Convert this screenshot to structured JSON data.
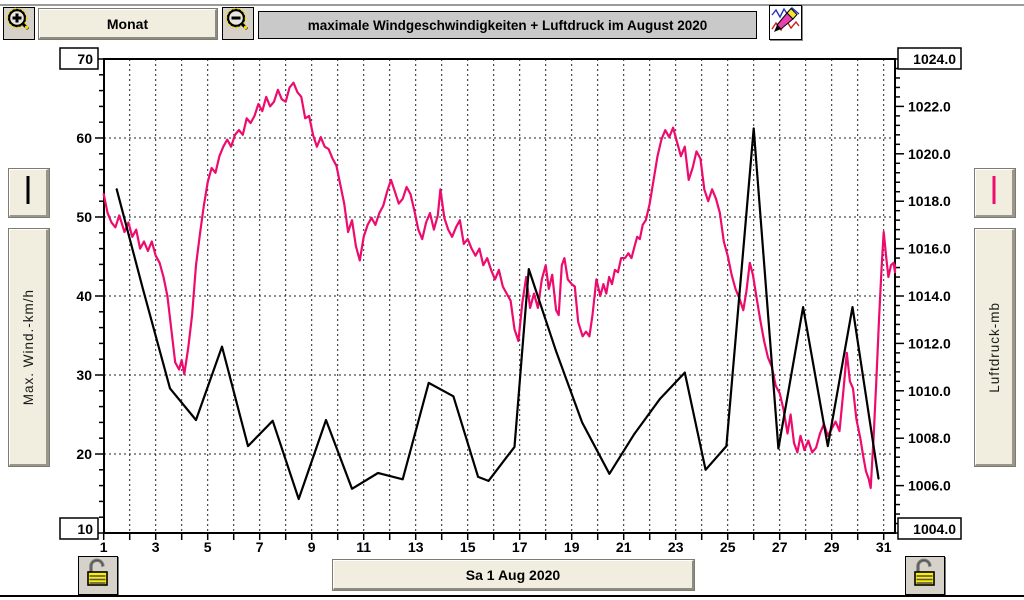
{
  "toolbar": {
    "zoom_in_icon": "magnifier-plus",
    "zoom_out_icon": "magnifier-minus",
    "monat_label": "Monat",
    "title": "maximale Windgeschwindigkeiten + Luftdruck im August 2020",
    "edit_icon": "pencil-eraser-over-curves"
  },
  "left_panel": {
    "legend_color": "#000000",
    "axis_label": "Max. Wind.-km/h"
  },
  "right_panel": {
    "legend_color": "#ee0b6e",
    "axis_label": "Luftdruck-mb"
  },
  "bottom_bar": {
    "left_lock_icon": "open-padlock",
    "date_label": "Sa 1 Aug 2020",
    "right_lock_icon": "open-padlock"
  },
  "chart_data": {
    "type": "line",
    "title": "maximale Windgeschwindigkeiten + Luftdruck im August 2020",
    "grid": "dashed",
    "x_axis": {
      "min": 1,
      "max": 31.5,
      "tick_step": 1,
      "labels": [
        "1",
        "3",
        "5",
        "7",
        "9",
        "11",
        "13",
        "15",
        "17",
        "19",
        "21",
        "23",
        "25",
        "27",
        "29",
        "31"
      ],
      "label_days": [
        1,
        3,
        5,
        7,
        9,
        11,
        13,
        15,
        17,
        19,
        21,
        23,
        25,
        27,
        29,
        31
      ]
    },
    "left_axis": {
      "title": "Max. Wind.-km/h",
      "min": 10,
      "max": 70,
      "major_step": 10,
      "minor_step": 2,
      "top_box": "70",
      "bottom_box": "10",
      "inner_labels": [
        "60",
        "50",
        "40",
        "30",
        "20"
      ],
      "inner_values": [
        60,
        50,
        40,
        30,
        20
      ]
    },
    "right_axis": {
      "title": "Luftdruck-mb",
      "min": 1004,
      "max": 1024,
      "major_step": 2,
      "minor_step": 0.4,
      "top_box": "1024.0",
      "bottom_box": "1004.0",
      "inner_labels": [
        "1022.0",
        "1020.0",
        "1018.0",
        "1016.0",
        "1014.0",
        "1012.0",
        "1010.0",
        "1008.0",
        "1006.0"
      ],
      "inner_values": [
        1022,
        1020,
        1018,
        1016,
        1014,
        1012,
        1010,
        1008,
        1006
      ]
    },
    "series": [
      {
        "name": "Max. Wind-km/h",
        "axis": "left",
        "color": "#000000",
        "points": [
          [
            1.5,
            53.5
          ],
          [
            2.5,
            41.0
          ],
          [
            3.55,
            28.3
          ],
          [
            4.55,
            24.3
          ],
          [
            5.55,
            33.6
          ],
          [
            6.55,
            21.0
          ],
          [
            7.5,
            24.2
          ],
          [
            8.5,
            14.3
          ],
          [
            9.55,
            24.3
          ],
          [
            10.55,
            15.6
          ],
          [
            11.55,
            17.6
          ],
          [
            12.5,
            16.8
          ],
          [
            13.5,
            29.0
          ],
          [
            14.45,
            27.3
          ],
          [
            15.4,
            17.1
          ],
          [
            15.8,
            16.6
          ],
          [
            16.8,
            20.9
          ],
          [
            17.35,
            43.4
          ],
          [
            18.4,
            33.0
          ],
          [
            19.4,
            24.0
          ],
          [
            20.45,
            17.5
          ],
          [
            21.4,
            22.5
          ],
          [
            22.4,
            27.0
          ],
          [
            23.35,
            30.3
          ],
          [
            24.15,
            18.0
          ],
          [
            24.95,
            21.0
          ],
          [
            26.0,
            61.2
          ],
          [
            26.95,
            20.7
          ],
          [
            27.9,
            38.6
          ],
          [
            28.85,
            21.0
          ],
          [
            29.8,
            38.6
          ],
          [
            30.8,
            16.9
          ]
        ]
      },
      {
        "name": "Luftdruck-mb",
        "axis": "right",
        "color": "#ee0b6e",
        "points": [
          [
            1.0,
            1018.3
          ],
          [
            1.15,
            1017.5
          ],
          [
            1.3,
            1017.1
          ],
          [
            1.45,
            1016.9
          ],
          [
            1.6,
            1017.4
          ],
          [
            1.8,
            1016.7
          ],
          [
            1.95,
            1017.1
          ],
          [
            2.1,
            1016.5
          ],
          [
            2.25,
            1016.8
          ],
          [
            2.4,
            1016.0
          ],
          [
            2.55,
            1016.3
          ],
          [
            2.7,
            1015.9
          ],
          [
            2.85,
            1016.3
          ],
          [
            3.0,
            1015.7
          ],
          [
            3.15,
            1015.4
          ],
          [
            3.3,
            1014.8
          ],
          [
            3.45,
            1014.0
          ],
          [
            3.6,
            1012.6
          ],
          [
            3.75,
            1011.2
          ],
          [
            3.9,
            1010.9
          ],
          [
            4.0,
            1011.3
          ],
          [
            4.1,
            1010.7
          ],
          [
            4.25,
            1011.8
          ],
          [
            4.4,
            1013.2
          ],
          [
            4.55,
            1015.3
          ],
          [
            4.7,
            1016.6
          ],
          [
            4.85,
            1017.8
          ],
          [
            5.0,
            1018.8
          ],
          [
            5.15,
            1019.4
          ],
          [
            5.3,
            1019.2
          ],
          [
            5.45,
            1019.9
          ],
          [
            5.6,
            1020.3
          ],
          [
            5.75,
            1020.6
          ],
          [
            5.9,
            1020.3
          ],
          [
            6.05,
            1020.8
          ],
          [
            6.2,
            1021.0
          ],
          [
            6.35,
            1020.8
          ],
          [
            6.5,
            1021.5
          ],
          [
            6.65,
            1021.3
          ],
          [
            6.8,
            1021.6
          ],
          [
            6.95,
            1022.1
          ],
          [
            7.1,
            1021.8
          ],
          [
            7.25,
            1022.4
          ],
          [
            7.4,
            1022.0
          ],
          [
            7.55,
            1022.2
          ],
          [
            7.7,
            1022.7
          ],
          [
            7.85,
            1022.3
          ],
          [
            8.0,
            1022.2
          ],
          [
            8.15,
            1022.8
          ],
          [
            8.3,
            1023.0
          ],
          [
            8.45,
            1022.6
          ],
          [
            8.6,
            1022.4
          ],
          [
            8.75,
            1021.5
          ],
          [
            8.9,
            1021.6
          ],
          [
            9.05,
            1020.8
          ],
          [
            9.2,
            1020.3
          ],
          [
            9.35,
            1020.7
          ],
          [
            9.5,
            1020.3
          ],
          [
            9.65,
            1020.2
          ],
          [
            9.8,
            1019.8
          ],
          [
            9.95,
            1019.5
          ],
          [
            10.1,
            1018.7
          ],
          [
            10.25,
            1017.9
          ],
          [
            10.4,
            1016.7
          ],
          [
            10.55,
            1017.2
          ],
          [
            10.7,
            1016.1
          ],
          [
            10.85,
            1015.5
          ],
          [
            11.0,
            1016.5
          ],
          [
            11.15,
            1017.0
          ],
          [
            11.3,
            1017.3
          ],
          [
            11.45,
            1017.0
          ],
          [
            11.6,
            1017.5
          ],
          [
            11.75,
            1017.8
          ],
          [
            11.9,
            1018.4
          ],
          [
            12.05,
            1018.9
          ],
          [
            12.2,
            1018.4
          ],
          [
            12.35,
            1017.9
          ],
          [
            12.5,
            1018.1
          ],
          [
            12.65,
            1018.6
          ],
          [
            12.8,
            1018.3
          ],
          [
            12.95,
            1017.6
          ],
          [
            13.1,
            1016.8
          ],
          [
            13.25,
            1016.4
          ],
          [
            13.4,
            1017.1
          ],
          [
            13.55,
            1017.5
          ],
          [
            13.7,
            1016.8
          ],
          [
            13.85,
            1017.4
          ],
          [
            13.95,
            1018.5
          ],
          [
            14.1,
            1017.3
          ],
          [
            14.25,
            1016.8
          ],
          [
            14.4,
            1016.5
          ],
          [
            14.55,
            1016.9
          ],
          [
            14.7,
            1017.2
          ],
          [
            14.85,
            1016.2
          ],
          [
            15.0,
            1016.4
          ],
          [
            15.15,
            1016.0
          ],
          [
            15.3,
            1015.7
          ],
          [
            15.45,
            1016.0
          ],
          [
            15.6,
            1015.3
          ],
          [
            15.75,
            1015.6
          ],
          [
            15.9,
            1015.1
          ],
          [
            16.05,
            1014.7
          ],
          [
            16.2,
            1015.1
          ],
          [
            16.35,
            1014.4
          ],
          [
            16.5,
            1014.1
          ],
          [
            16.65,
            1013.8
          ],
          [
            16.8,
            1012.6
          ],
          [
            16.95,
            1012.1
          ],
          [
            17.1,
            1013.7
          ],
          [
            17.25,
            1014.8
          ],
          [
            17.4,
            1013.5
          ],
          [
            17.55,
            1014.1
          ],
          [
            17.7,
            1013.5
          ],
          [
            17.85,
            1014.7
          ],
          [
            18.0,
            1015.3
          ],
          [
            18.12,
            1014.3
          ],
          [
            18.25,
            1014.9
          ],
          [
            18.4,
            1013.4
          ],
          [
            18.5,
            1013.2
          ],
          [
            18.62,
            1015.3
          ],
          [
            18.72,
            1015.6
          ],
          [
            18.85,
            1014.7
          ],
          [
            19.0,
            1014.5
          ],
          [
            19.12,
            1014.4
          ],
          [
            19.25,
            1012.9
          ],
          [
            19.42,
            1012.3
          ],
          [
            19.55,
            1012.5
          ],
          [
            19.68,
            1012.3
          ],
          [
            19.8,
            1013.2
          ],
          [
            19.95,
            1014.7
          ],
          [
            20.1,
            1014.0
          ],
          [
            20.22,
            1014.5
          ],
          [
            20.33,
            1014.1
          ],
          [
            20.44,
            1014.8
          ],
          [
            20.55,
            1014.5
          ],
          [
            20.66,
            1015.1
          ],
          [
            20.78,
            1015.0
          ],
          [
            20.9,
            1015.6
          ],
          [
            21.05,
            1015.6
          ],
          [
            21.18,
            1015.8
          ],
          [
            21.3,
            1015.6
          ],
          [
            21.42,
            1016.1
          ],
          [
            21.52,
            1016.5
          ],
          [
            21.62,
            1016.4
          ],
          [
            21.73,
            1017.0
          ],
          [
            21.85,
            1017.2
          ],
          [
            22.0,
            1017.9
          ],
          [
            22.15,
            1018.9
          ],
          [
            22.3,
            1019.9
          ],
          [
            22.45,
            1020.6
          ],
          [
            22.6,
            1021.0
          ],
          [
            22.75,
            1020.7
          ],
          [
            22.9,
            1021.1
          ],
          [
            23.05,
            1020.5
          ],
          [
            23.2,
            1019.9
          ],
          [
            23.35,
            1020.3
          ],
          [
            23.5,
            1018.9
          ],
          [
            23.65,
            1019.4
          ],
          [
            23.8,
            1020.1
          ],
          [
            23.95,
            1019.8
          ],
          [
            24.1,
            1018.5
          ],
          [
            24.25,
            1018.0
          ],
          [
            24.4,
            1018.5
          ],
          [
            24.55,
            1018.1
          ],
          [
            24.7,
            1017.5
          ],
          [
            24.85,
            1016.3
          ],
          [
            25.0,
            1015.7
          ],
          [
            25.15,
            1014.9
          ],
          [
            25.3,
            1014.3
          ],
          [
            25.45,
            1013.9
          ],
          [
            25.6,
            1013.4
          ],
          [
            25.72,
            1014.2
          ],
          [
            25.85,
            1015.4
          ],
          [
            25.97,
            1014.9
          ],
          [
            26.1,
            1014.0
          ],
          [
            26.25,
            1013.0
          ],
          [
            26.4,
            1012.1
          ],
          [
            26.55,
            1011.4
          ],
          [
            26.7,
            1011.0
          ],
          [
            26.85,
            1010.2
          ],
          [
            27.0,
            1009.9
          ],
          [
            27.15,
            1009.2
          ],
          [
            27.3,
            1008.2
          ],
          [
            27.42,
            1009.0
          ],
          [
            27.55,
            1007.8
          ],
          [
            27.68,
            1007.4
          ],
          [
            27.8,
            1008.1
          ],
          [
            27.95,
            1007.5
          ],
          [
            28.1,
            1007.9
          ],
          [
            28.25,
            1007.4
          ],
          [
            28.4,
            1007.6
          ],
          [
            28.55,
            1008.2
          ],
          [
            28.7,
            1008.6
          ],
          [
            28.85,
            1008.1
          ],
          [
            29.0,
            1008.4
          ],
          [
            29.15,
            1008.7
          ],
          [
            29.3,
            1008.3
          ],
          [
            29.45,
            1010.0
          ],
          [
            29.58,
            1011.6
          ],
          [
            29.7,
            1010.4
          ],
          [
            29.82,
            1010.1
          ],
          [
            29.95,
            1008.8
          ],
          [
            30.1,
            1008.0
          ],
          [
            30.22,
            1007.2
          ],
          [
            30.32,
            1006.6
          ],
          [
            30.42,
            1006.3
          ],
          [
            30.5,
            1005.9
          ],
          [
            30.62,
            1008.2
          ],
          [
            30.72,
            1010.5
          ],
          [
            30.82,
            1013.0
          ],
          [
            30.92,
            1015.2
          ],
          [
            31.0,
            1016.7
          ],
          [
            31.1,
            1015.6
          ],
          [
            31.18,
            1014.8
          ],
          [
            31.28,
            1015.3
          ],
          [
            31.38,
            1015.4
          ],
          [
            31.45,
            1015.0
          ],
          [
            31.5,
            1015.3
          ]
        ]
      }
    ]
  }
}
